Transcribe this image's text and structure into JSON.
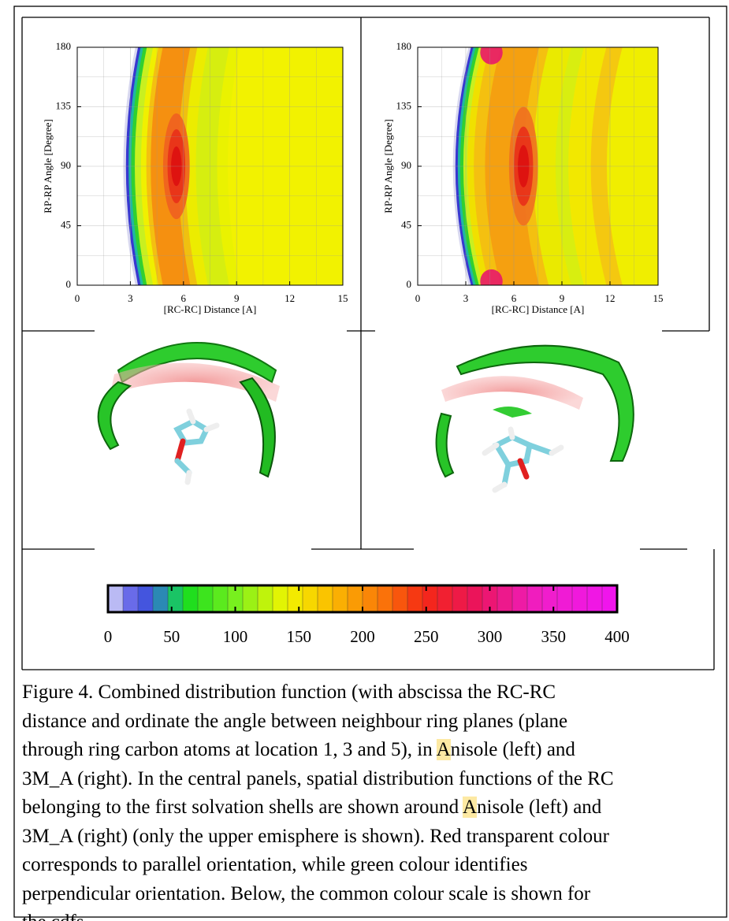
{
  "panels": [
    {
      "ylabel": "RP-RP Angle [Degree]",
      "xlabel": "[RC-RC] Distance [A]",
      "xticks": [
        0,
        3,
        6,
        9,
        12,
        15
      ],
      "yticks": [
        0,
        45,
        90,
        135,
        180
      ]
    },
    {
      "ylabel": "RP-RP Angle [Degree]",
      "xlabel": "[RC-RC] Distance [A]",
      "xticks": [
        0,
        3,
        6,
        9,
        12,
        15
      ],
      "yticks": [
        0,
        45,
        90,
        135,
        180
      ]
    }
  ],
  "colorbar": {
    "ticks": [
      0,
      50,
      100,
      150,
      200,
      250,
      300,
      350,
      400
    ]
  },
  "caption": [
    [
      "Figure 4. Combined distribution function (with abscissa the RC-RC"
    ],
    [
      "distance and ordinate the angle between neighbour ring planes (plane"
    ],
    [
      "through ring carbon atoms at location 1, 3 and 5), in ",
      "A",
      "nisole (left) and"
    ],
    [
      "3M_A (right). In the central panels, spatial distribution functions of the RC"
    ],
    [
      "belonging to the first solvation shells are shown around ",
      "A",
      "nisole (left) and"
    ],
    [
      "3M_A (right) (only the upper emisphere is shown). Red transparent colour"
    ],
    [
      "corresponds to parallel orientation, while green colour identifies"
    ],
    [
      "perpendicular orientation. Below, the common colour scale is shown for"
    ],
    [
      "the cdfs."
    ]
  ]
}
